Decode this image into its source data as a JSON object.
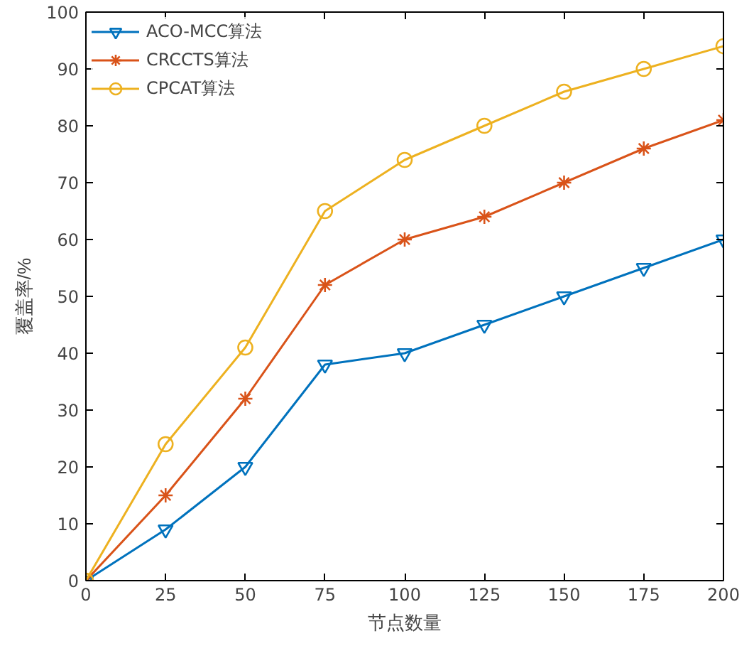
{
  "chart_data": {
    "type": "line",
    "xlabel": "节点数量",
    "ylabel": "覆盖率/%",
    "x": [
      0,
      25,
      50,
      75,
      100,
      125,
      150,
      175,
      200
    ],
    "series": [
      {
        "name": "ACO-MCC算法",
        "color": "#0072bd",
        "marker": "triangle_down",
        "values": [
          0,
          9,
          20,
          38,
          40,
          45,
          50,
          55,
          60
        ]
      },
      {
        "name": "CRCCTS算法",
        "color": "#d95319",
        "marker": "cross",
        "values": [
          0,
          15,
          32,
          52,
          60,
          64,
          70,
          76,
          81
        ]
      },
      {
        "name": "CPCAT算法",
        "color": "#edb120",
        "marker": "circle",
        "values": [
          0,
          24,
          41,
          65,
          74,
          80,
          86,
          90,
          94
        ]
      }
    ],
    "xlim": [
      0,
      200
    ],
    "ylim": [
      0,
      100
    ],
    "xticks": [
      0,
      25,
      50,
      75,
      100,
      125,
      150,
      175,
      200
    ],
    "yticks": [
      0,
      10,
      20,
      30,
      40,
      50,
      60,
      70,
      80,
      90,
      100
    ],
    "grid": false,
    "legend": "top left",
    "line_style": "solid"
  }
}
